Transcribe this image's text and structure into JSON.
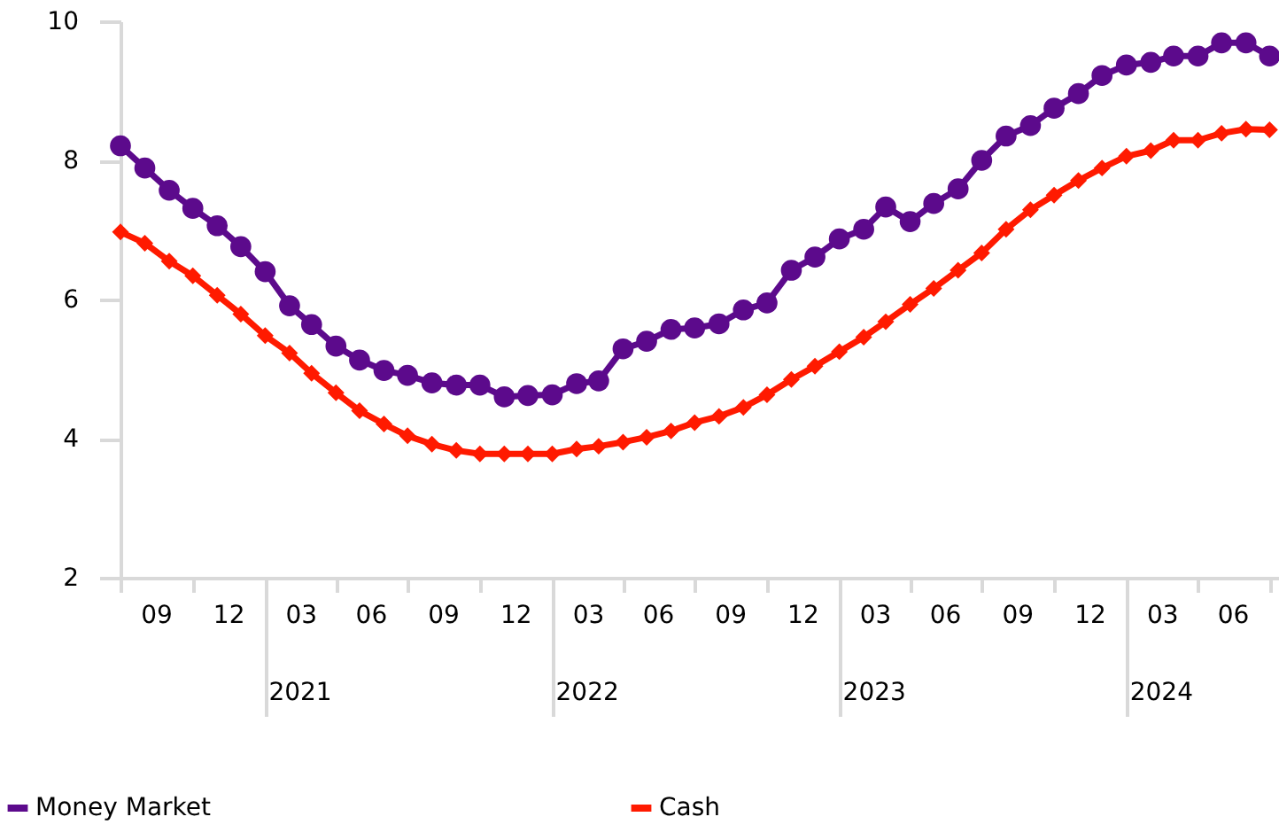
{
  "chart_data": {
    "type": "line",
    "x": [
      "2020-07",
      "2020-08",
      "2020-09",
      "2020-10",
      "2020-11",
      "2020-12",
      "2021-01",
      "2021-02",
      "2021-03",
      "2021-04",
      "2021-05",
      "2021-06",
      "2021-07",
      "2021-08",
      "2021-09",
      "2021-10",
      "2021-11",
      "2021-12",
      "2022-01",
      "2022-02",
      "2022-03",
      "2022-04",
      "2022-05",
      "2022-06",
      "2022-07",
      "2022-08",
      "2022-09",
      "2022-10",
      "2022-11",
      "2022-12",
      "2023-01",
      "2023-02",
      "2023-03",
      "2023-04",
      "2023-05",
      "2023-06",
      "2023-07",
      "2023-08",
      "2023-09",
      "2023-10",
      "2023-11",
      "2023-12",
      "2024-01",
      "2024-02",
      "2024-03",
      "2024-04",
      "2024-05",
      "2024-06",
      "2024-07"
    ],
    "series": [
      {
        "name": "Money Market",
        "color": "#5c0a8c",
        "marker": "circle",
        "values": [
          8.21,
          7.89,
          7.57,
          7.31,
          7.06,
          6.76,
          6.4,
          5.91,
          5.64,
          5.33,
          5.13,
          4.98,
          4.91,
          4.8,
          4.77,
          4.77,
          4.6,
          4.62,
          4.63,
          4.79,
          4.83,
          5.29,
          5.4,
          5.57,
          5.59,
          5.65,
          5.85,
          5.95,
          6.42,
          6.61,
          6.87,
          7.01,
          7.33,
          7.12,
          7.38,
          7.59,
          8.0,
          8.35,
          8.5,
          8.75,
          8.96,
          9.22,
          9.37,
          9.41,
          9.5,
          9.5,
          9.69,
          9.69,
          9.5
        ]
      },
      {
        "name": "Cash",
        "color": "#ff1a00",
        "marker": "diamond",
        "values": [
          6.97,
          6.81,
          6.55,
          6.34,
          6.06,
          5.79,
          5.48,
          5.23,
          4.94,
          4.66,
          4.4,
          4.21,
          4.04,
          3.92,
          3.83,
          3.78,
          3.78,
          3.78,
          3.78,
          3.85,
          3.89,
          3.95,
          4.02,
          4.11,
          4.23,
          4.32,
          4.45,
          4.63,
          4.85,
          5.04,
          5.25,
          5.46,
          5.68,
          5.93,
          6.16,
          6.42,
          6.67,
          7.01,
          7.29,
          7.5,
          7.71,
          7.89,
          8.06,
          8.14,
          8.29,
          8.29,
          8.39,
          8.45,
          8.44
        ]
      }
    ],
    "xlim": [
      "2020-07-01",
      "2024-07-13"
    ],
    "xticks": [
      {
        "value": "2020-07-01",
        "label": null
      },
      {
        "value": "2020-08-15",
        "label": "09"
      },
      {
        "value": "2020-10-01",
        "label": null
      },
      {
        "value": "2020-11-15",
        "label": "12"
      },
      {
        "value": "2021-01-01",
        "label": null
      },
      {
        "value": "2021-02-15",
        "label": "03"
      },
      {
        "value": "2021-04-01",
        "label": null
      },
      {
        "value": "2021-05-15",
        "label": "06"
      },
      {
        "value": "2021-07-01",
        "label": null
      },
      {
        "value": "2021-08-15",
        "label": "09"
      },
      {
        "value": "2021-10-01",
        "label": null
      },
      {
        "value": "2021-11-15",
        "label": "12"
      },
      {
        "value": "2022-01-01",
        "label": null
      },
      {
        "value": "2022-02-15",
        "label": "03"
      },
      {
        "value": "2022-04-01",
        "label": null
      },
      {
        "value": "2022-05-15",
        "label": "06"
      },
      {
        "value": "2022-07-01",
        "label": null
      },
      {
        "value": "2022-08-15",
        "label": "09"
      },
      {
        "value": "2022-10-01",
        "label": null
      },
      {
        "value": "2022-11-15",
        "label": "12"
      },
      {
        "value": "2023-01-01",
        "label": null
      },
      {
        "value": "2023-02-15",
        "label": "03"
      },
      {
        "value": "2023-04-01",
        "label": null
      },
      {
        "value": "2023-05-15",
        "label": "06"
      },
      {
        "value": "2023-07-01",
        "label": null
      },
      {
        "value": "2023-08-15",
        "label": "09"
      },
      {
        "value": "2023-10-01",
        "label": null
      },
      {
        "value": "2023-11-15",
        "label": "12"
      },
      {
        "value": "2024-01-01",
        "label": null
      },
      {
        "value": "2024-02-15",
        "label": "03"
      },
      {
        "value": "2024-04-01",
        "label": null
      },
      {
        "value": "2024-05-15",
        "label": "06"
      },
      {
        "value": "2024-07-01",
        "label": null
      }
    ],
    "ylim": [
      2,
      10
    ],
    "yticks": [
      2,
      4,
      6,
      8,
      10
    ],
    "annotations": [
      "2021",
      "2022",
      "2023",
      "2024"
    ],
    "grid": false,
    "legend": "bottom",
    "line_style": "solid"
  }
}
